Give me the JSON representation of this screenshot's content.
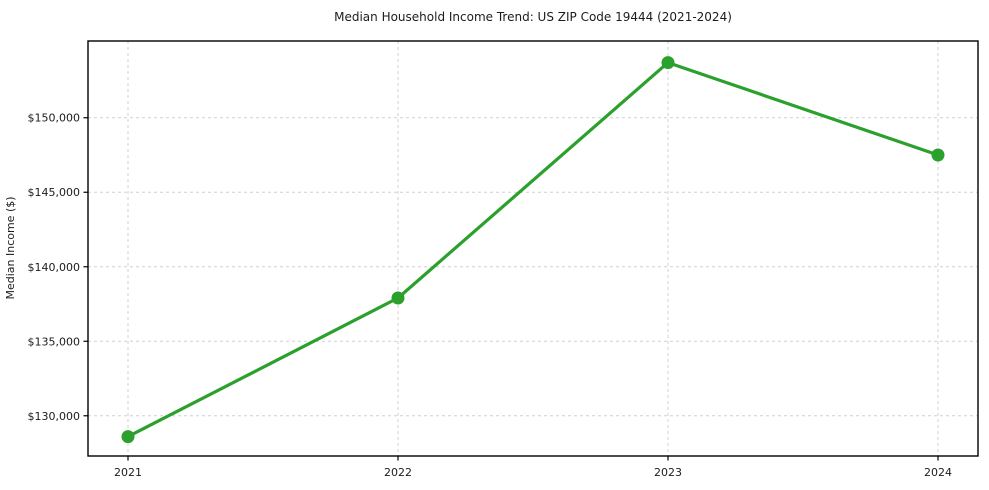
{
  "chart_data": {
    "type": "line",
    "title": "Median Household Income Trend: US ZIP Code 19444 (2021-2024)",
    "xlabel": "",
    "ylabel": "Median Income ($)",
    "categories": [
      "2021",
      "2022",
      "2023",
      "2024"
    ],
    "series": [
      {
        "name": "Median Household Income",
        "values": [
          128600,
          137900,
          153700,
          147500
        ],
        "color": "#2ca02c",
        "marker": "circle"
      }
    ],
    "ylim": [
      127300,
      155150
    ],
    "yticks": [
      130000,
      135000,
      140000,
      145000,
      150000
    ],
    "ytick_labels": [
      "$130,000",
      "$135,000",
      "$140,000",
      "$145,000",
      "$150,000"
    ],
    "grid": true,
    "grid_style": "dashed",
    "grid_color": "#d0d0d0",
    "spine_color": "#000000",
    "legend": false
  }
}
